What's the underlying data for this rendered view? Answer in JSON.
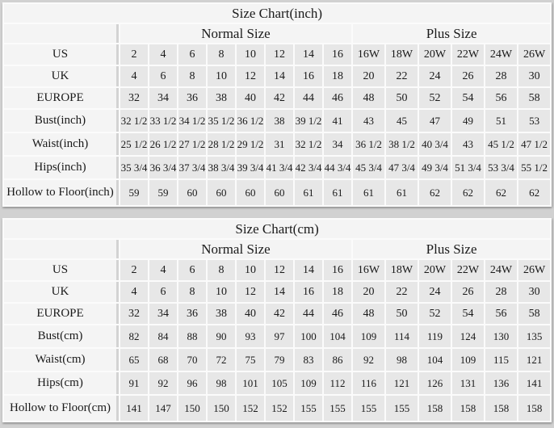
{
  "colors": {
    "page_background": "#d1d1d1",
    "data_cell_background": "#e7e7e7",
    "label_cell_background": "#f4f4f4",
    "grid_gap": "#fbfbfb",
    "text": "#1a1a1a"
  },
  "tables": [
    {
      "title": "Size Chart(inch)",
      "group_headers": [
        {
          "label": "Normal Size",
          "span": 8
        },
        {
          "label": "Plus Size",
          "span": 6
        }
      ],
      "rows": [
        {
          "label": "US",
          "values": [
            "2",
            "4",
            "6",
            "8",
            "10",
            "12",
            "14",
            "16",
            "16W",
            "18W",
            "20W",
            "22W",
            "24W",
            "26W"
          ]
        },
        {
          "label": "UK",
          "values": [
            "4",
            "6",
            "8",
            "10",
            "12",
            "14",
            "16",
            "18",
            "20",
            "22",
            "24",
            "26",
            "28",
            "30"
          ]
        },
        {
          "label": "EUROPE",
          "values": [
            "32",
            "34",
            "36",
            "38",
            "40",
            "42",
            "44",
            "46",
            "48",
            "50",
            "52",
            "54",
            "56",
            "58"
          ]
        },
        {
          "label": "Bust(inch)",
          "values": [
            "32 1/2",
            "33 1/2",
            "34 1/2",
            "35 1/2",
            "36 1/2",
            "38",
            "39 1/2",
            "41",
            "43",
            "45",
            "47",
            "49",
            "51",
            "53"
          ]
        },
        {
          "label": "Waist(inch)",
          "values": [
            "25 1/2",
            "26 1/2",
            "27 1/2",
            "28 1/2",
            "29 1/2",
            "31",
            "32 1/2",
            "34",
            "36 1/2",
            "38 1/2",
            "40 3/4",
            "43",
            "45 1/2",
            "47 1/2"
          ]
        },
        {
          "label": "Hips(inch)",
          "values": [
            "35 3/4",
            "36 3/4",
            "37 3/4",
            "38 3/4",
            "39 3/4",
            "41 3/4",
            "42 3/4",
            "44 3/4",
            "45 3/4",
            "47 3/4",
            "49 3/4",
            "51 3/4",
            "53 3/4",
            "55 1/2"
          ]
        },
        {
          "label": "Hollow to Floor(inch)",
          "values": [
            "59",
            "59",
            "60",
            "60",
            "60",
            "60",
            "61",
            "61",
            "61",
            "61",
            "62",
            "62",
            "62",
            "62"
          ]
        }
      ]
    },
    {
      "title": "Size Chart(cm)",
      "group_headers": [
        {
          "label": "Normal Size",
          "span": 8
        },
        {
          "label": "Plus Size",
          "span": 6
        }
      ],
      "rows": [
        {
          "label": "US",
          "values": [
            "2",
            "4",
            "6",
            "8",
            "10",
            "12",
            "14",
            "16",
            "16W",
            "18W",
            "20W",
            "22W",
            "24W",
            "26W"
          ]
        },
        {
          "label": "UK",
          "values": [
            "4",
            "6",
            "8",
            "10",
            "12",
            "14",
            "16",
            "18",
            "20",
            "22",
            "24",
            "26",
            "28",
            "30"
          ]
        },
        {
          "label": "EUROPE",
          "values": [
            "32",
            "34",
            "36",
            "38",
            "40",
            "42",
            "44",
            "46",
            "48",
            "50",
            "52",
            "54",
            "56",
            "58"
          ]
        },
        {
          "label": "Bust(cm)",
          "values": [
            "82",
            "84",
            "88",
            "90",
            "93",
            "97",
            "100",
            "104",
            "109",
            "114",
            "119",
            "124",
            "130",
            "135"
          ]
        },
        {
          "label": "Waist(cm)",
          "values": [
            "65",
            "68",
            "70",
            "72",
            "75",
            "79",
            "83",
            "86",
            "92",
            "98",
            "104",
            "109",
            "115",
            "121"
          ]
        },
        {
          "label": "Hips(cm)",
          "values": [
            "91",
            "92",
            "96",
            "98",
            "101",
            "105",
            "109",
            "112",
            "116",
            "121",
            "126",
            "131",
            "136",
            "141"
          ]
        },
        {
          "label": "Hollow to Floor(cm)",
          "values": [
            "141",
            "147",
            "150",
            "150",
            "152",
            "152",
            "155",
            "155",
            "155",
            "155",
            "158",
            "158",
            "158",
            "158"
          ]
        }
      ]
    }
  ]
}
